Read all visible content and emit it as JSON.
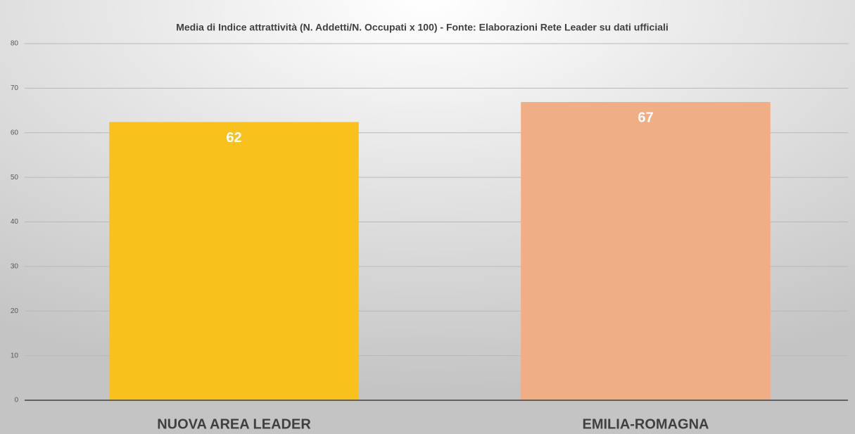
{
  "chart_data": {
    "type": "bar",
    "title": "Media di Indice attrattività  (N. Addetti/N. Occupati x 100) - Fonte: Elaborazioni  Rete Leader su dati ufficiali",
    "categories": [
      "NUOVA AREA LEADER",
      "EMILIA-ROMAGNA"
    ],
    "values": [
      62.4,
      66.9
    ],
    "value_labels": [
      "62",
      "67"
    ],
    "colors": [
      "#f8c11c",
      "#f0ae84"
    ],
    "ylim": [
      0,
      80
    ],
    "yticks": [
      0,
      10,
      20,
      30,
      40,
      50,
      60,
      70,
      80
    ],
    "grid": true
  }
}
